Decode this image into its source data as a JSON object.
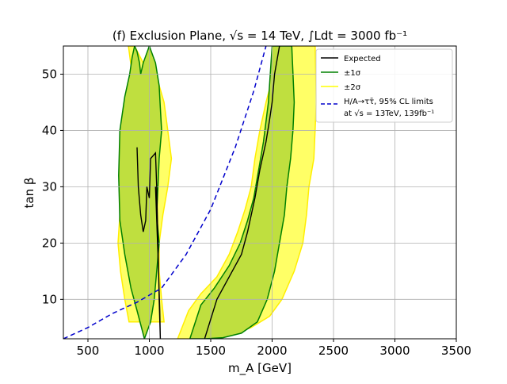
{
  "chart_data": {
    "type": "area",
    "title": "(f) Exclusion Plane, √s = 14 TeV, ∫Ldt = 3000 fb⁻¹",
    "xlabel": "m_A [GeV]",
    "ylabel": "tan β",
    "xlim": [
      300,
      3500
    ],
    "ylim": [
      3,
      55
    ],
    "xticks": [
      500,
      1000,
      1500,
      2000,
      2500,
      3000,
      3500
    ],
    "yticks": [
      10,
      20,
      30,
      40,
      50
    ],
    "grid": true,
    "legend_position": "top-right",
    "legend": [
      {
        "label": "Expected",
        "color": "#000000",
        "style": "line"
      },
      {
        "label": "±1σ",
        "color": "#008000",
        "style": "line"
      },
      {
        "label": "±2σ",
        "color": "#ffff00",
        "style": "line"
      },
      {
        "label": "H/A→ττ̄, 95% CL limits",
        "label2": "at √s = 13TeV, 139fb⁻¹",
        "color": "#0000cc",
        "style": "dashed"
      }
    ],
    "bands": [
      {
        "name": "±2σ",
        "fill": "#ffff66",
        "edge": "#ffee00",
        "x": [
          830,
          860,
          880,
          870,
          850,
          800,
          760,
          745,
          765,
          800,
          835,
          1120,
          1100,
          1080,
          1080,
          1110,
          1150,
          1180,
          1150,
          1120,
          1080,
          1030,
          950,
          880
        ],
        "y": [
          55,
          50,
          45,
          40,
          35,
          30,
          25,
          20,
          15,
          10,
          6,
          6,
          10,
          15,
          20,
          25,
          30,
          35,
          40,
          45,
          48,
          50,
          52,
          55
        ]
      },
      {
        "name": "±2σ",
        "fill": "#ffff66",
        "edge": "#ffee00",
        "x": [
          1230,
          1320,
          1420,
          1550,
          1650,
          1720,
          1780,
          1830,
          1860,
          1900,
          1950,
          2010,
          2050,
          2350,
          2360,
          2340,
          2300,
          2280,
          2250,
          2180,
          2080,
          1980,
          1830,
          1650,
          1400
        ],
        "y": [
          3,
          8,
          11,
          14,
          18,
          22,
          26,
          30,
          35,
          40,
          45,
          50,
          55,
          55,
          45,
          35,
          30,
          25,
          20,
          15,
          10,
          7,
          5,
          3.5,
          3
        ]
      },
      {
        "name": "±1σ",
        "fill": "#bfdf3f",
        "edge": "#008000",
        "x": [
          880,
          900,
          920,
          930,
          950,
          1000,
          1050,
          1080,
          1090,
          1100,
          1080,
          1070,
          1060,
          1080,
          1060,
          1040,
          1010,
          960,
          900,
          850,
          800,
          760,
          750,
          760,
          800,
          840,
          860,
          880
        ],
        "y": [
          55,
          54,
          52,
          50,
          52,
          55,
          52,
          48,
          44,
          40,
          35,
          30,
          25,
          20,
          15,
          10,
          6,
          3,
          8,
          12,
          18,
          24,
          32,
          40,
          46,
          50,
          53,
          55
        ]
      },
      {
        "name": "±1σ",
        "fill": "#bfdf3f",
        "edge": "#008000",
        "x": [
          1330,
          1420,
          1530,
          1650,
          1740,
          1800,
          1850,
          1890,
          1930,
          1970,
          2000,
          2160,
          2180,
          2170,
          2150,
          2120,
          2100,
          2060,
          2020,
          1960,
          1880,
          1750,
          1600,
          1450
        ],
        "y": [
          3,
          9,
          12,
          16,
          20,
          24,
          28,
          33,
          38,
          45,
          55,
          55,
          45,
          40,
          35,
          30,
          25,
          20,
          15,
          10,
          6,
          4,
          3.2,
          3
        ]
      }
    ],
    "series": [
      {
        "name": "Expected",
        "color": "#000000",
        "style": "solid",
        "x": [
          900,
          910,
          930,
          950,
          970,
          980,
          1000,
          1010,
          1050,
          1060,
          1070,
          1080,
          1090,
          1085,
          1070,
          1050
        ],
        "y": [
          37,
          30,
          25,
          22,
          24,
          30,
          28,
          35,
          36,
          30,
          20,
          10,
          3,
          8,
          18,
          30
        ]
      },
      {
        "name": "Expected",
        "color": "#000000",
        "style": "solid",
        "x": [
          1450,
          1550,
          1650,
          1750,
          1800,
          1860,
          1900,
          1950,
          1980,
          2000,
          2020,
          2060
        ],
        "y": [
          3,
          10,
          14,
          18,
          22,
          28,
          33,
          38,
          42,
          45,
          50,
          55
        ]
      },
      {
        "name": "H/A→ττ̄, 95% CL limits at √s = 13TeV, 139fb⁻¹",
        "color": "#0000cc",
        "style": "dashed",
        "x": [
          300,
          500,
          700,
          900,
          1100,
          1300,
          1500,
          1700,
          1850,
          1950
        ],
        "y": [
          3,
          5,
          7.5,
          9.5,
          12,
          18,
          26,
          37,
          47,
          55
        ]
      }
    ]
  }
}
